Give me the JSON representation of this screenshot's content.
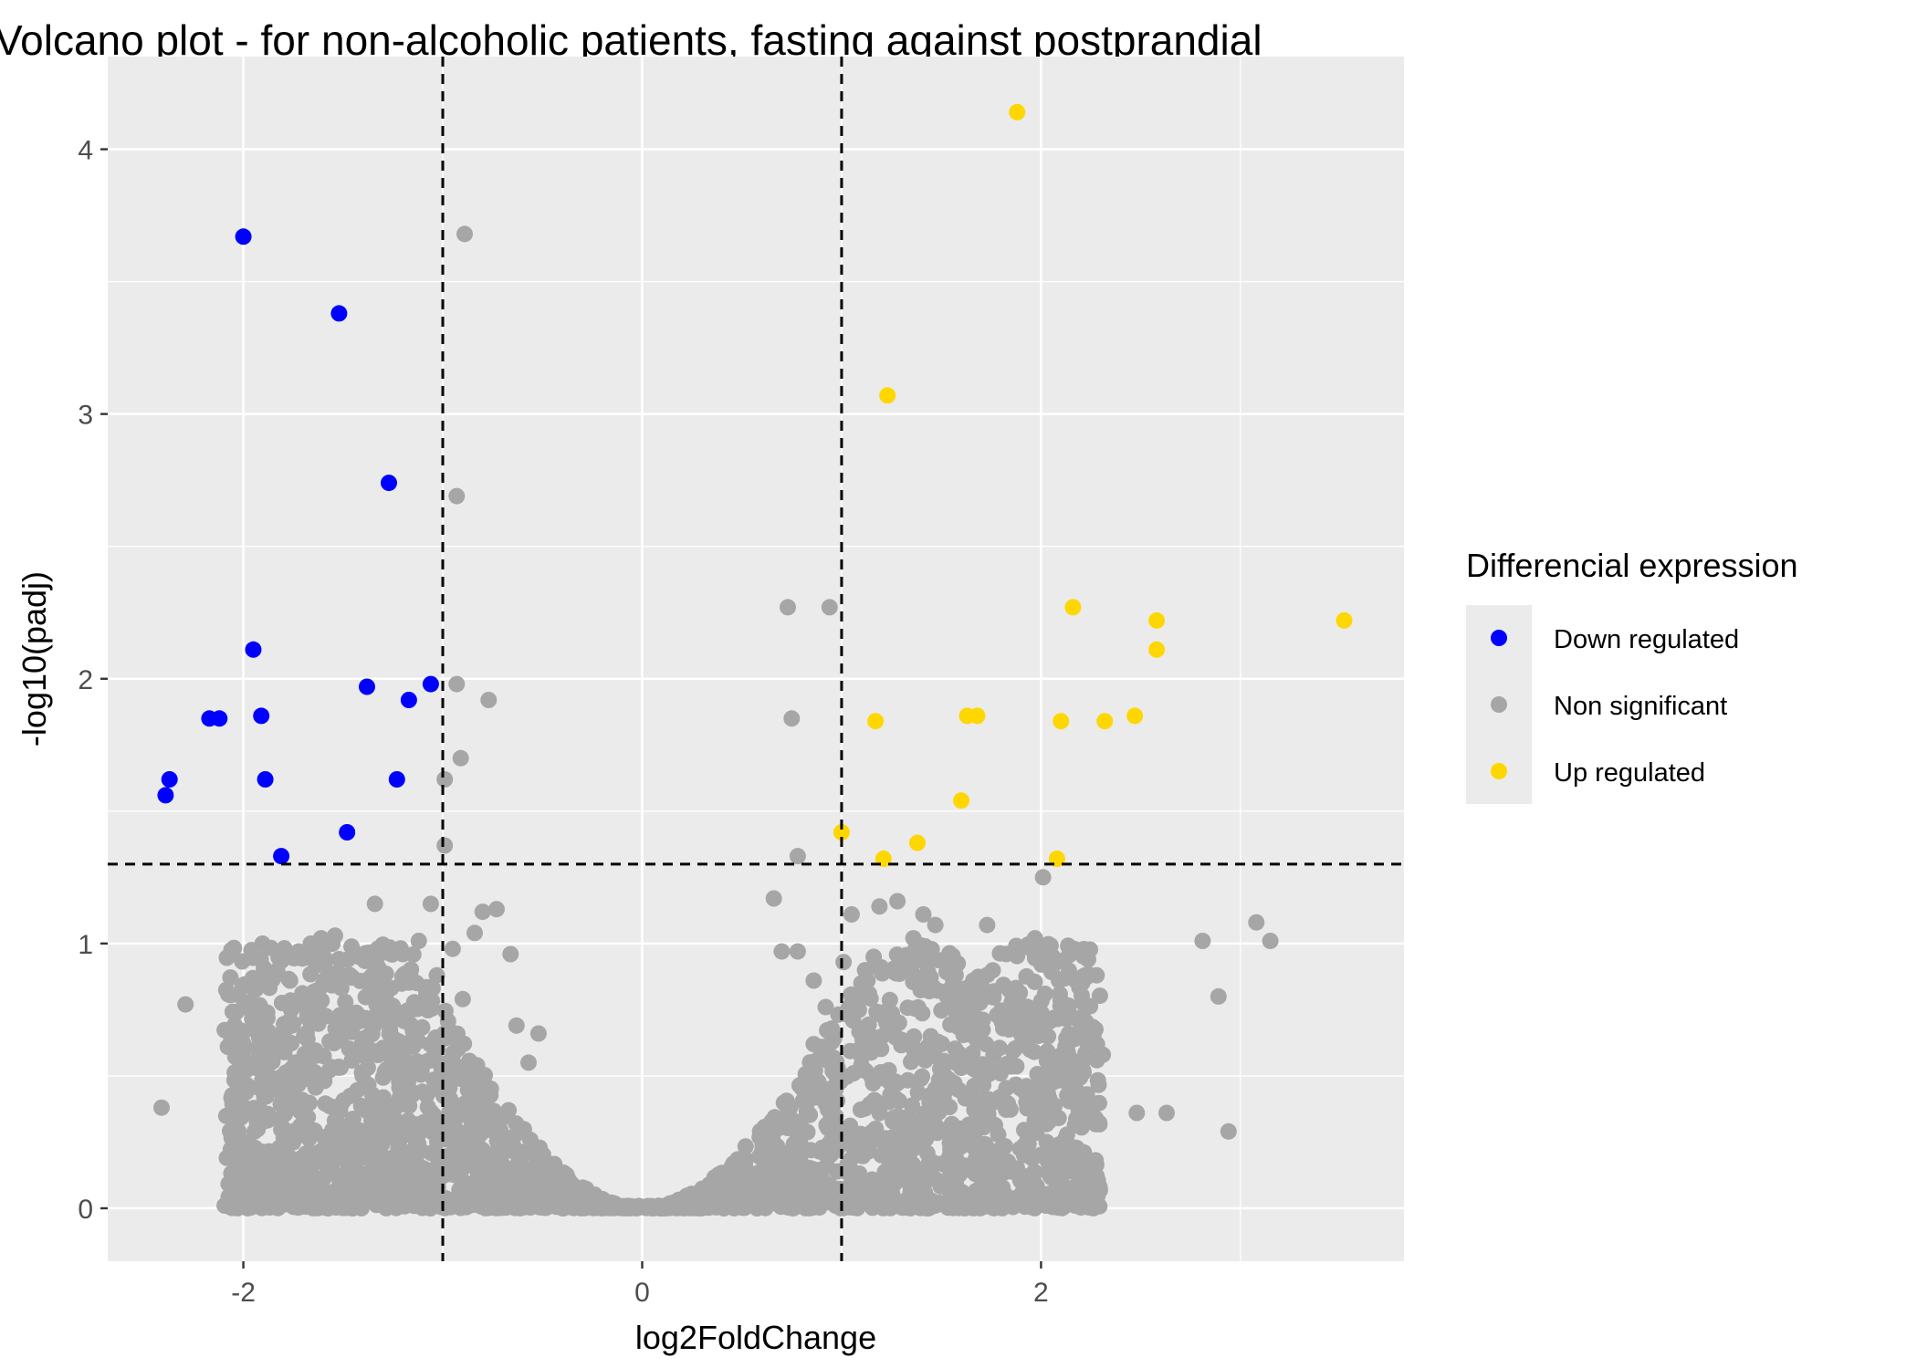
{
  "chart_data": {
    "type": "scatter",
    "title": "Volcano plot - for non-alcoholic patients, fasting against postprandial",
    "xlabel": "log2FoldChange",
    "ylabel": "-log10(padj)",
    "xlim": [
      -2.68,
      3.82
    ],
    "ylim": [
      -0.2,
      4.35
    ],
    "x_ticks": [
      -2,
      0,
      2
    ],
    "y_ticks": [
      0,
      1,
      2,
      3,
      4
    ],
    "x_tick_labels": [
      "-2",
      "0",
      "2"
    ],
    "y_tick_labels": [
      "0",
      "1",
      "2",
      "3",
      "4"
    ],
    "grid": true,
    "panel_background": "#ebebeb",
    "thresholds": {
      "fold_change": [
        -1,
        1
      ],
      "neg_log10_padj": 1.3
    },
    "legend": {
      "title": "Differencial expression",
      "placement": "right",
      "entries": [
        {
          "label": "Down regulated",
          "color": "#0000ff"
        },
        {
          "label": "Non significant",
          "color": "#a6a6a6"
        },
        {
          "label": "Up regulated",
          "color": "#ffd700"
        }
      ]
    },
    "series": [
      {
        "name": "Down regulated",
        "color": "#0000ff",
        "x": [
          -2.0,
          -1.52,
          -1.27,
          -1.95,
          -1.38,
          -1.17,
          -1.06,
          -2.17,
          -2.12,
          -1.91,
          -2.37,
          -2.39,
          -1.89,
          -1.23,
          -1.48,
          -1.81
        ],
        "y": [
          3.67,
          3.38,
          2.74,
          2.11,
          1.97,
          1.92,
          1.98,
          1.85,
          1.85,
          1.86,
          1.62,
          1.56,
          1.62,
          1.62,
          1.42,
          1.33
        ]
      },
      {
        "name": "Non significant",
        "color": "#a6a6a6",
        "x": [
          -0.89,
          -0.93,
          -0.93,
          -0.77,
          -0.91,
          -0.99,
          -0.99,
          0.73,
          0.94,
          0.75,
          0.78,
          -2.41,
          -2.29,
          -2.06,
          -1.89,
          -1.86,
          -1.68,
          -1.61,
          -1.54,
          -1.47,
          -1.42,
          -1.34,
          -1.28,
          -1.2,
          -1.12,
          -1.06,
          -1.03,
          -0.95,
          -0.9,
          -0.84,
          -0.8,
          -0.73,
          -0.66,
          -0.63,
          -0.57,
          -0.52,
          0.66,
          0.7,
          0.78,
          0.86,
          0.92,
          1.01,
          1.05,
          1.13,
          1.19,
          1.28,
          1.36,
          1.41,
          1.47,
          1.53,
          1.66,
          1.73,
          1.89,
          1.97,
          2.01,
          2.09,
          2.17,
          2.31,
          2.48,
          2.63,
          2.81,
          2.94,
          3.08,
          3.15,
          2.89,
          1.93,
          1.78,
          1.67,
          1.59,
          1.44,
          1.21,
          0.98,
          0.86
        ],
        "y": [
          3.68,
          2.69,
          1.98,
          1.92,
          1.7,
          1.62,
          1.37,
          2.27,
          2.27,
          1.85,
          1.33,
          0.38,
          0.77,
          0.64,
          0.85,
          0.48,
          0.72,
          1.02,
          1.03,
          0.69,
          0.95,
          1.15,
          0.71,
          0.96,
          1.01,
          1.15,
          0.88,
          0.98,
          0.79,
          1.04,
          1.12,
          1.13,
          0.96,
          0.69,
          0.55,
          0.66,
          1.17,
          0.97,
          0.97,
          0.86,
          0.76,
          0.93,
          1.11,
          0.86,
          1.14,
          1.16,
          1.02,
          1.11,
          1.07,
          0.82,
          0.86,
          1.07,
          0.68,
          1.02,
          1.25,
          0.86,
          0.64,
          0.58,
          0.36,
          0.36,
          1.01,
          0.29,
          1.08,
          1.01,
          0.8,
          0.7,
          0.73,
          0.65,
          0.56,
          0.82,
          0.74,
          0.53,
          0.62
        ]
      },
      {
        "name": "Up regulated",
        "color": "#ffd700",
        "x": [
          1.88,
          1.23,
          2.16,
          2.58,
          2.58,
          3.52,
          1.17,
          1.63,
          1.68,
          2.1,
          2.32,
          2.47,
          1.6,
          1.0,
          1.38,
          1.21,
          2.08
        ],
        "y": [
          4.14,
          3.07,
          2.27,
          2.22,
          2.11,
          2.22,
          1.84,
          1.86,
          1.86,
          1.84,
          1.84,
          1.86,
          1.54,
          1.42,
          1.38,
          1.32,
          1.32
        ]
      }
    ]
  }
}
